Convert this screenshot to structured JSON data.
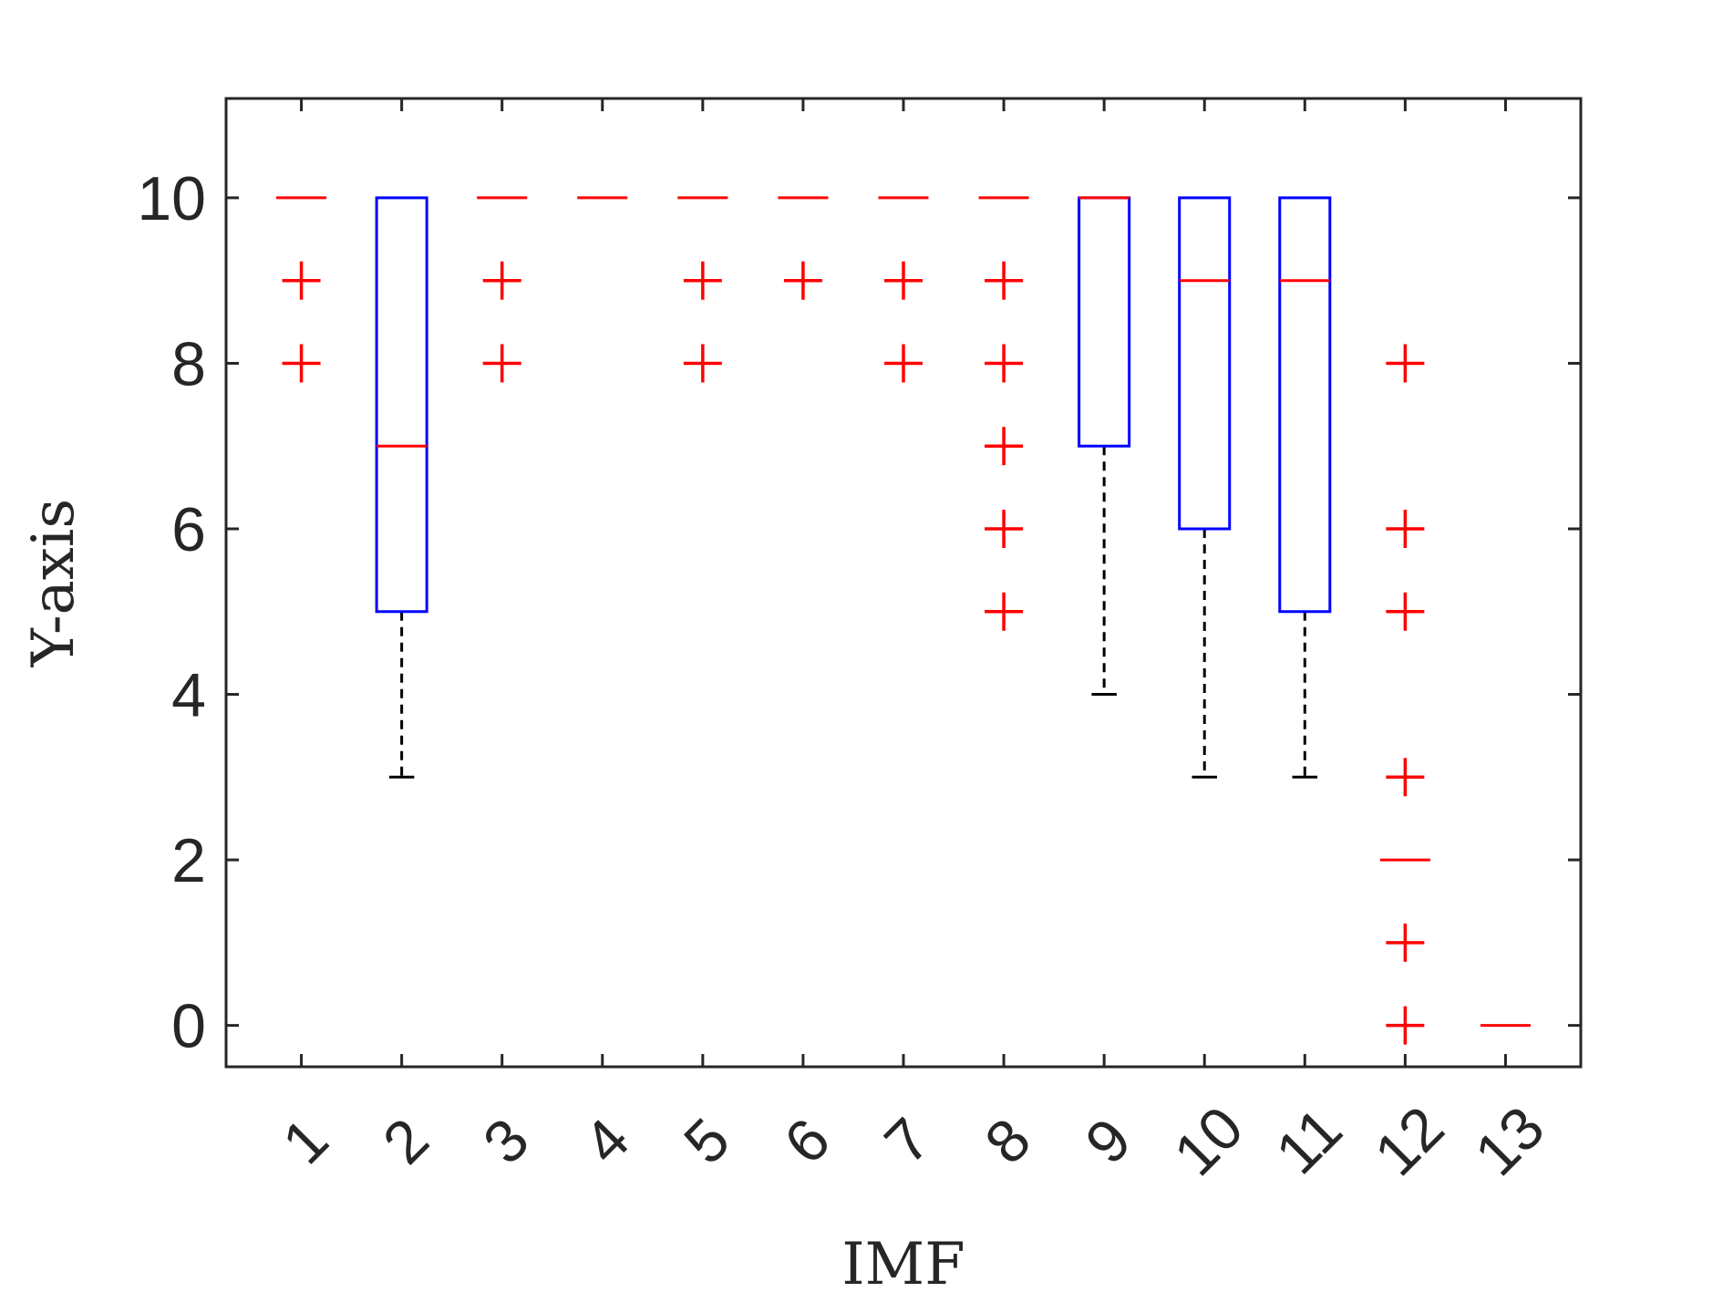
{
  "chart_data": {
    "type": "box",
    "title": "",
    "xlabel": "IMF",
    "ylabel": "Y-axis",
    "ylim": [
      -0.5,
      11.2
    ],
    "yticks": [
      0,
      2,
      4,
      6,
      8,
      10
    ],
    "categories": [
      "1",
      "2",
      "3",
      "4",
      "5",
      "6",
      "7",
      "8",
      "9",
      "10",
      "11",
      "12",
      "13"
    ],
    "boxes": [
      {
        "category": "1",
        "q1": 10,
        "median": 10,
        "q3": 10,
        "whisker_low": 10,
        "whisker_high": 10,
        "outliers": [
          9,
          8
        ]
      },
      {
        "category": "2",
        "q1": 5,
        "median": 7,
        "q3": 10,
        "whisker_low": 3,
        "whisker_high": 10,
        "outliers": []
      },
      {
        "category": "3",
        "q1": 10,
        "median": 10,
        "q3": 10,
        "whisker_low": 10,
        "whisker_high": 10,
        "outliers": [
          9,
          8
        ]
      },
      {
        "category": "4",
        "q1": 10,
        "median": 10,
        "q3": 10,
        "whisker_low": 10,
        "whisker_high": 10,
        "outliers": []
      },
      {
        "category": "5",
        "q1": 10,
        "median": 10,
        "q3": 10,
        "whisker_low": 10,
        "whisker_high": 10,
        "outliers": [
          9,
          8
        ]
      },
      {
        "category": "6",
        "q1": 10,
        "median": 10,
        "q3": 10,
        "whisker_low": 10,
        "whisker_high": 10,
        "outliers": [
          9
        ]
      },
      {
        "category": "7",
        "q1": 10,
        "median": 10,
        "q3": 10,
        "whisker_low": 10,
        "whisker_high": 10,
        "outliers": [
          9,
          8
        ]
      },
      {
        "category": "8",
        "q1": 10,
        "median": 10,
        "q3": 10,
        "whisker_low": 10,
        "whisker_high": 10,
        "outliers": [
          9,
          8,
          7,
          6,
          5
        ]
      },
      {
        "category": "9",
        "q1": 7,
        "median": 10,
        "q3": 10,
        "whisker_low": 4,
        "whisker_high": 10,
        "outliers": []
      },
      {
        "category": "10",
        "q1": 6,
        "median": 9,
        "q3": 10,
        "whisker_low": 3,
        "whisker_high": 10,
        "outliers": []
      },
      {
        "category": "11",
        "q1": 5,
        "median": 9,
        "q3": 10,
        "whisker_low": 3,
        "whisker_high": 10,
        "outliers": []
      },
      {
        "category": "12",
        "q1": 2,
        "median": 2,
        "q3": 2,
        "whisker_low": 2,
        "whisker_high": 2,
        "outliers": [
          8,
          6,
          5,
          3,
          1,
          0
        ]
      },
      {
        "category": "13",
        "q1": 0,
        "median": 0,
        "q3": 0,
        "whisker_low": 0,
        "whisker_high": 0,
        "outliers": []
      }
    ],
    "colors": {
      "box": "#0000ff",
      "median": "#ff0000",
      "outlier": "#ff0000",
      "whisker": "#000000",
      "axis": "#262626",
      "background": "#ffffff"
    },
    "grid": false,
    "legend": "none"
  }
}
